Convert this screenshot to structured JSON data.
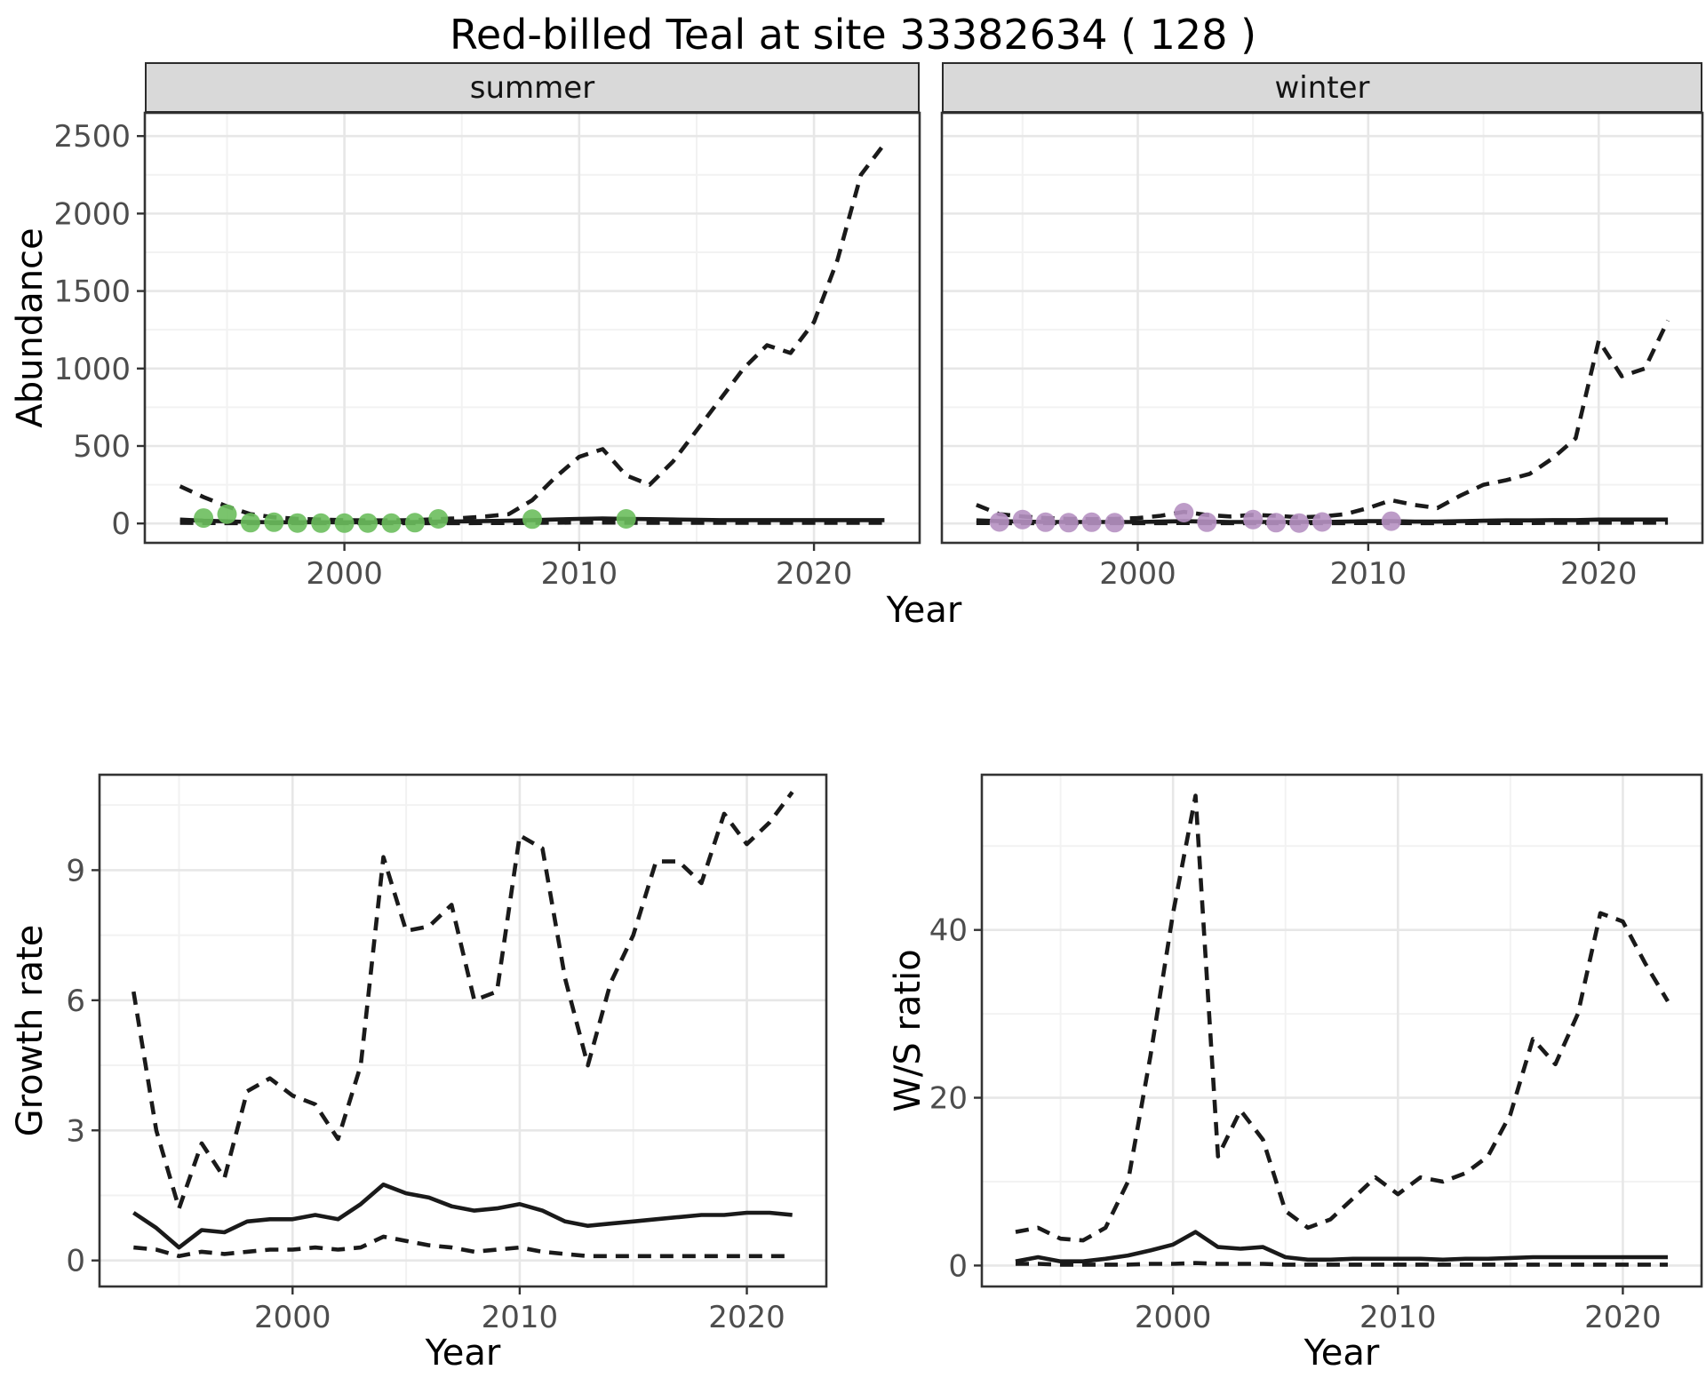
{
  "title": "Red-billed Teal at site 33382634 ( 128 )",
  "colors": {
    "summer_point": "#6CBE5D",
    "winter_point": "#B691C2",
    "line": "#1A1A1A",
    "strip_bg": "#D9D9D9",
    "panel_border": "#333333",
    "grid_major": "#E7E7E7",
    "grid_minor": "#F2F2F2",
    "tick_label": "#4D4D4D"
  },
  "chart_data": [
    {
      "id": "abundance_summer",
      "type": "line",
      "facet_label": "summer",
      "xlabel": "Year",
      "ylabel": "Abundance",
      "xlim": [
        1991.5,
        2024.5
      ],
      "ylim": [
        -125,
        2650
      ],
      "xticks": [
        2000,
        2010,
        2020
      ],
      "yticks": [
        0,
        500,
        1000,
        1500,
        2000,
        2500
      ],
      "years": [
        1993,
        1994,
        1995,
        1996,
        1997,
        1998,
        1999,
        2000,
        2001,
        2002,
        2003,
        2004,
        2005,
        2006,
        2007,
        2008,
        2009,
        2010,
        2011,
        2012,
        2013,
        2014,
        2015,
        2016,
        2017,
        2018,
        2019,
        2020,
        2021,
        2022,
        2023
      ],
      "series": [
        {
          "name": "upper_ci",
          "style": "dashed",
          "values": [
            240,
            170,
            110,
            60,
            40,
            30,
            25,
            22,
            20,
            20,
            22,
            28,
            35,
            45,
            60,
            150,
            300,
            430,
            480,
            310,
            250,
            400,
            600,
            800,
            1000,
            1150,
            1100,
            1300,
            1700,
            2250,
            2450
          ]
        },
        {
          "name": "mean",
          "style": "solid",
          "values": [
            25,
            18,
            14,
            10,
            8,
            8,
            8,
            8,
            8,
            8,
            10,
            12,
            14,
            16,
            18,
            22,
            26,
            30,
            32,
            30,
            28,
            26,
            24,
            22,
            22,
            22,
            22,
            22,
            22,
            22,
            22
          ]
        },
        {
          "name": "lower_ci",
          "style": "dashed",
          "values": [
            4,
            3,
            2,
            2,
            2,
            2,
            2,
            2,
            2,
            2,
            2,
            2,
            2,
            3,
            3,
            4,
            5,
            6,
            6,
            5,
            4,
            4,
            4,
            4,
            4,
            4,
            4,
            4,
            4,
            4,
            4
          ]
        }
      ],
      "points": {
        "name": "observed_counts",
        "color": "#6CBE5D",
        "x": [
          1994,
          1995,
          1996,
          1997,
          1998,
          1999,
          2000,
          2001,
          2002,
          2003,
          2004,
          2008,
          2012
        ],
        "y": [
          35,
          60,
          5,
          8,
          3,
          2,
          2,
          3,
          2,
          5,
          30,
          28,
          30
        ]
      }
    },
    {
      "id": "abundance_winter",
      "type": "line",
      "facet_label": "winter",
      "xlabel": "Year",
      "ylabel": "Abundance",
      "xlim": [
        1991.5,
        2024.5
      ],
      "ylim": [
        -125,
        2650
      ],
      "xticks": [
        2000,
        2010,
        2020
      ],
      "yticks": [
        0,
        500,
        1000,
        1500,
        2000,
        2500
      ],
      "years": [
        1993,
        1994,
        1995,
        1996,
        1997,
        1998,
        1999,
        2000,
        2001,
        2002,
        2003,
        2004,
        2005,
        2006,
        2007,
        2008,
        2009,
        2010,
        2011,
        2012,
        2013,
        2014,
        2015,
        2016,
        2017,
        2018,
        2019,
        2020,
        2021,
        2022,
        2023
      ],
      "series": [
        {
          "name": "upper_ci",
          "style": "dashed",
          "values": [
            120,
            60,
            45,
            35,
            30,
            28,
            30,
            35,
            50,
            75,
            55,
            45,
            55,
            50,
            40,
            45,
            60,
            100,
            150,
            120,
            100,
            180,
            250,
            280,
            320,
            420,
            550,
            1180,
            950,
            1000,
            1310
          ]
        },
        {
          "name": "mean",
          "style": "solid",
          "values": [
            20,
            15,
            12,
            10,
            10,
            10,
            10,
            10,
            12,
            15,
            12,
            10,
            10,
            10,
            10,
            10,
            12,
            15,
            15,
            12,
            12,
            15,
            18,
            20,
            20,
            22,
            22,
            25,
            25,
            25,
            25
          ]
        },
        {
          "name": "lower_ci",
          "style": "dashed",
          "values": [
            3,
            2,
            2,
            2,
            2,
            2,
            2,
            2,
            2,
            3,
            2,
            2,
            2,
            2,
            2,
            2,
            2,
            3,
            3,
            2,
            2,
            3,
            3,
            3,
            3,
            4,
            4,
            5,
            5,
            5,
            5
          ]
        }
      ],
      "points": {
        "name": "observed_counts",
        "color": "#B691C2",
        "x": [
          1994,
          1995,
          1996,
          1997,
          1998,
          1999,
          2002,
          2003,
          2005,
          2006,
          2007,
          2008,
          2011
        ],
        "y": [
          10,
          25,
          8,
          5,
          8,
          5,
          70,
          8,
          25,
          5,
          3,
          10,
          15
        ]
      }
    },
    {
      "id": "growth_rate",
      "type": "line",
      "xlabel": "Year",
      "ylabel": "Growth rate",
      "xlim": [
        1991.5,
        2023.5
      ],
      "ylim": [
        -0.6,
        11.2
      ],
      "xticks": [
        2000,
        2010,
        2020
      ],
      "yticks": [
        0,
        3,
        6,
        9
      ],
      "years": [
        1993,
        1994,
        1995,
        1996,
        1997,
        1998,
        1999,
        2000,
        2001,
        2002,
        2003,
        2004,
        2005,
        2006,
        2007,
        2008,
        2009,
        2010,
        2011,
        2012,
        2013,
        2014,
        2015,
        2016,
        2017,
        2018,
        2019,
        2020,
        2021,
        2022
      ],
      "series": [
        {
          "name": "upper_ci",
          "style": "dashed",
          "values": [
            6.2,
            3.0,
            1.2,
            2.7,
            1.9,
            3.9,
            4.2,
            3.8,
            3.6,
            2.8,
            4.5,
            9.3,
            7.6,
            7.7,
            8.2,
            6.0,
            6.2,
            9.8,
            9.5,
            6.5,
            4.5,
            6.4,
            7.5,
            9.2,
            9.2,
            8.7,
            10.3,
            9.6,
            10.1,
            10.8
          ]
        },
        {
          "name": "mean",
          "style": "solid",
          "values": [
            1.1,
            0.75,
            0.3,
            0.7,
            0.65,
            0.9,
            0.95,
            0.95,
            1.05,
            0.95,
            1.3,
            1.75,
            1.55,
            1.45,
            1.25,
            1.15,
            1.2,
            1.3,
            1.15,
            0.9,
            0.8,
            0.85,
            0.9,
            0.95,
            1.0,
            1.05,
            1.05,
            1.1,
            1.1,
            1.05
          ]
        },
        {
          "name": "lower_ci",
          "style": "dashed",
          "values": [
            0.3,
            0.25,
            0.1,
            0.2,
            0.15,
            0.2,
            0.25,
            0.25,
            0.3,
            0.25,
            0.3,
            0.55,
            0.45,
            0.35,
            0.3,
            0.2,
            0.25,
            0.3,
            0.2,
            0.15,
            0.1,
            0.1,
            0.1,
            0.1,
            0.1,
            0.1,
            0.1,
            0.1,
            0.1,
            0.1
          ]
        }
      ]
    },
    {
      "id": "ws_ratio",
      "type": "line",
      "xlabel": "Year",
      "ylabel": "W/S ratio",
      "xlim": [
        1991.5,
        2023.5
      ],
      "ylim": [
        -2.5,
        58.5
      ],
      "xticks": [
        2000,
        2010,
        2020
      ],
      "yticks": [
        0,
        20,
        40
      ],
      "years": [
        1993,
        1994,
        1995,
        1996,
        1997,
        1998,
        1999,
        2000,
        2001,
        2002,
        2003,
        2004,
        2005,
        2006,
        2007,
        2008,
        2009,
        2010,
        2011,
        2012,
        2013,
        2014,
        2015,
        2016,
        2017,
        2018,
        2019,
        2020,
        2021,
        2022
      ],
      "series": [
        {
          "name": "upper_ci",
          "style": "dashed",
          "values": [
            4.0,
            4.5,
            3.2,
            3.0,
            4.5,
            10,
            25,
            42,
            56,
            13,
            18.5,
            15,
            6.5,
            4.5,
            5.5,
            8,
            10.5,
            8.5,
            10.5,
            10,
            11,
            13,
            18,
            27,
            24,
            30,
            42,
            41,
            36,
            31.5
          ]
        },
        {
          "name": "mean",
          "style": "solid",
          "values": [
            0.5,
            1.0,
            0.5,
            0.5,
            0.8,
            1.2,
            1.8,
            2.5,
            4.0,
            2.2,
            2.0,
            2.2,
            1.0,
            0.7,
            0.7,
            0.8,
            0.8,
            0.8,
            0.8,
            0.7,
            0.8,
            0.8,
            0.9,
            1.0,
            1.0,
            1.0,
            1.0,
            1.0,
            1.0,
            1.0
          ]
        },
        {
          "name": "lower_ci",
          "style": "dashed",
          "values": [
            0.2,
            0.2,
            0.1,
            0.1,
            0.1,
            0.1,
            0.2,
            0.2,
            0.3,
            0.2,
            0.2,
            0.2,
            0.1,
            0.1,
            0.1,
            0.1,
            0.1,
            0.1,
            0.1,
            0.1,
            0.1,
            0.1,
            0.1,
            0.1,
            0.1,
            0.1,
            0.1,
            0.1,
            0.1,
            0.1
          ]
        }
      ]
    }
  ]
}
